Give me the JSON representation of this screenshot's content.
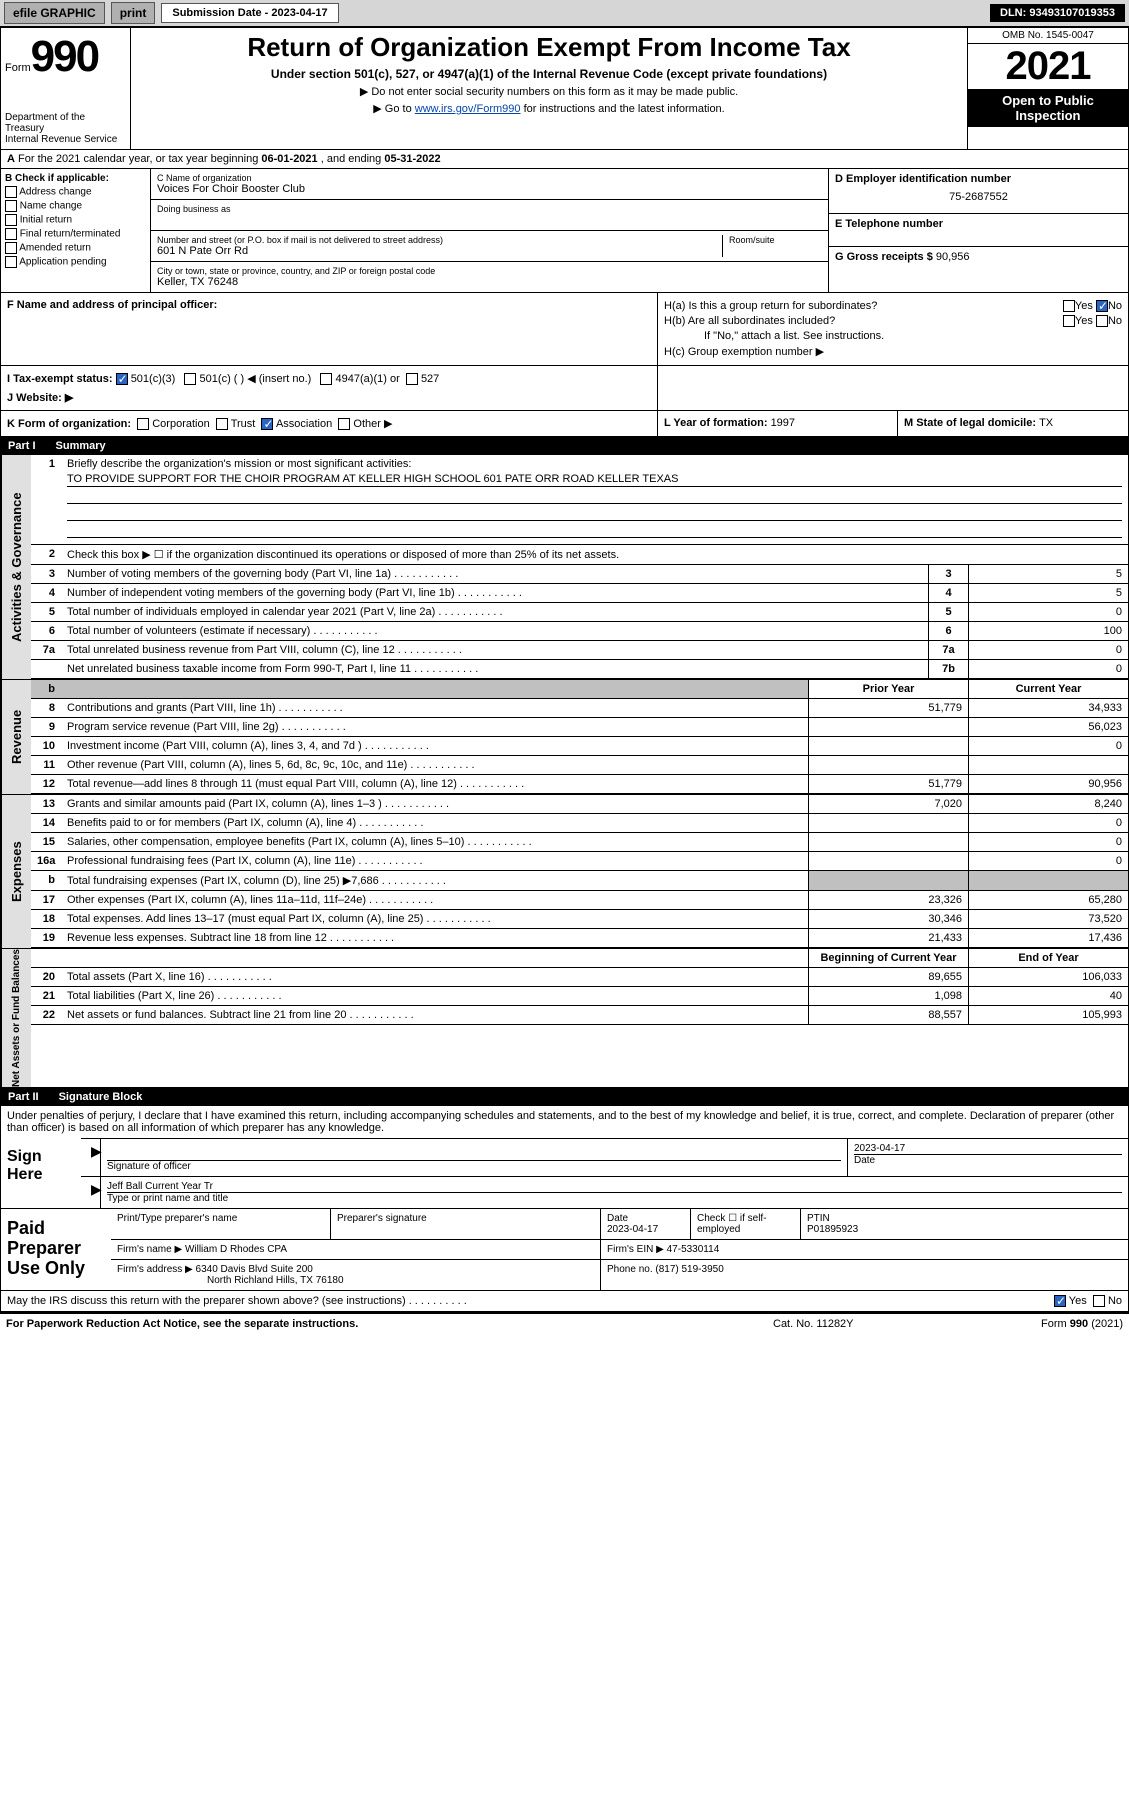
{
  "toolbar": {
    "efile": "efile GRAPHIC",
    "print": "print",
    "submission_label": "Submission Date - 2023-04-17",
    "dln": "DLN: 93493107019353"
  },
  "header": {
    "form_word": "Form",
    "form_num": "990",
    "dept": "Department of the Treasury",
    "irs": "Internal Revenue Service",
    "title": "Return of Organization Exempt From Income Tax",
    "sub1": "Under section 501(c), 527, or 4947(a)(1) of the Internal Revenue Code (except private foundations)",
    "sub2": "▶ Do not enter social security numbers on this form as it may be made public.",
    "sub3_pre": "▶ Go to ",
    "sub3_link": "www.irs.gov/Form990",
    "sub3_post": " for instructions and the latest information.",
    "omb": "OMB No. 1545-0047",
    "year": "2021",
    "inspect1": "Open to Public",
    "inspect2": "Inspection"
  },
  "row_a": {
    "label": "A",
    "text_pre": "For the 2021 calendar year, or tax year beginning ",
    "begin": "06-01-2021",
    "mid": " , and ending ",
    "end": "05-31-2022"
  },
  "col_b": {
    "header": "B Check if applicable:",
    "opts": [
      "Address change",
      "Name change",
      "Initial return",
      "Final return/terminated",
      "Amended return",
      "Application pending"
    ]
  },
  "col_c": {
    "name_lbl": "C Name of organization",
    "name": "Voices For Choir Booster Club",
    "dba_lbl": "Doing business as",
    "addr_lbl": "Number and street (or P.O. box if mail is not delivered to street address)",
    "suite_lbl": "Room/suite",
    "addr": "601 N Pate Orr Rd",
    "city_lbl": "City or town, state or province, country, and ZIP or foreign postal code",
    "city": "Keller, TX  76248"
  },
  "col_d": {
    "lbl": "D Employer identification number",
    "val": "75-2687552"
  },
  "col_e": {
    "lbl": "E Telephone number",
    "val": ""
  },
  "col_g": {
    "lbl": "G Gross receipts $ ",
    "val": "90,956"
  },
  "col_f": {
    "lbl": "F  Name and address of principal officer:",
    "val": ""
  },
  "col_h": {
    "ha": "H(a)  Is this a group return for subordinates?",
    "hb": "H(b)  Are all subordinates included?",
    "hb_note": "If \"No,\" attach a list. See instructions.",
    "hc": "H(c)  Group exemption number ▶",
    "yes": "Yes",
    "no": "No"
  },
  "row_i": {
    "lbl": "I  Tax-exempt status:",
    "o1": "501(c)(3)",
    "o2": "501(c) (  ) ◀ (insert no.)",
    "o3": "4947(a)(1) or",
    "o4": "527"
  },
  "row_j": {
    "lbl": "J  Website: ▶"
  },
  "row_k": {
    "lbl": "K Form of organization:",
    "o1": "Corporation",
    "o2": "Trust",
    "o3": "Association",
    "o4": "Other ▶"
  },
  "row_l": {
    "lbl": "L Year of formation: ",
    "val": "1997"
  },
  "row_m": {
    "lbl": "M State of legal domicile: ",
    "val": "TX"
  },
  "part1": {
    "hdr": "Part I",
    "title": "Summary",
    "q1": "Briefly describe the organization's mission or most significant activities:",
    "mission": "TO PROVIDE SUPPORT FOR THE CHOIR PROGRAM AT KELLER HIGH SCHOOL 601 PATE ORR ROAD KELLER TEXAS",
    "q2": "Check this box ▶ ☐  if the organization discontinued its operations or disposed of more than 25% of its net assets.",
    "lines_gov": [
      {
        "n": "3",
        "d": "Number of voting members of the governing body (Part VI, line 1a)",
        "mn": "3",
        "v": "5"
      },
      {
        "n": "4",
        "d": "Number of independent voting members of the governing body (Part VI, line 1b)",
        "mn": "4",
        "v": "5"
      },
      {
        "n": "5",
        "d": "Total number of individuals employed in calendar year 2021 (Part V, line 2a)",
        "mn": "5",
        "v": "0"
      },
      {
        "n": "6",
        "d": "Total number of volunteers (estimate if necessary)",
        "mn": "6",
        "v": "100"
      },
      {
        "n": "7a",
        "d": "Total unrelated business revenue from Part VIII, column (C), line 12",
        "mn": "7a",
        "v": "0"
      },
      {
        "n": "",
        "d": "Net unrelated business taxable income from Form 990-T, Part I, line 11",
        "mn": "7b",
        "v": "0"
      }
    ],
    "hdr_prior": "Prior Year",
    "hdr_curr": "Current Year",
    "rev": [
      {
        "n": "8",
        "d": "Contributions and grants (Part VIII, line 1h)",
        "p": "51,779",
        "c": "34,933"
      },
      {
        "n": "9",
        "d": "Program service revenue (Part VIII, line 2g)",
        "p": "",
        "c": "56,023"
      },
      {
        "n": "10",
        "d": "Investment income (Part VIII, column (A), lines 3, 4, and 7d )",
        "p": "",
        "c": "0"
      },
      {
        "n": "11",
        "d": "Other revenue (Part VIII, column (A), lines 5, 6d, 8c, 9c, 10c, and 11e)",
        "p": "",
        "c": ""
      },
      {
        "n": "12",
        "d": "Total revenue—add lines 8 through 11 (must equal Part VIII, column (A), line 12)",
        "p": "51,779",
        "c": "90,956"
      }
    ],
    "exp": [
      {
        "n": "13",
        "d": "Grants and similar amounts paid (Part IX, column (A), lines 1–3 )",
        "p": "7,020",
        "c": "8,240"
      },
      {
        "n": "14",
        "d": "Benefits paid to or for members (Part IX, column (A), line 4)",
        "p": "",
        "c": "0"
      },
      {
        "n": "15",
        "d": "Salaries, other compensation, employee benefits (Part IX, column (A), lines 5–10)",
        "p": "",
        "c": "0"
      },
      {
        "n": "16a",
        "d": "Professional fundraising fees (Part IX, column (A), line 11e)",
        "p": "",
        "c": "0"
      },
      {
        "n": "b",
        "d": "Total fundraising expenses (Part IX, column (D), line 25) ▶7,686",
        "p": "shade",
        "c": "shade"
      },
      {
        "n": "17",
        "d": "Other expenses (Part IX, column (A), lines 11a–11d, 11f–24e)",
        "p": "23,326",
        "c": "65,280"
      },
      {
        "n": "18",
        "d": "Total expenses. Add lines 13–17 (must equal Part IX, column (A), line 25)",
        "p": "30,346",
        "c": "73,520"
      },
      {
        "n": "19",
        "d": "Revenue less expenses. Subtract line 18 from line 12",
        "p": "21,433",
        "c": "17,436"
      }
    ],
    "hdr_beg": "Beginning of Current Year",
    "hdr_end": "End of Year",
    "net": [
      {
        "n": "20",
        "d": "Total assets (Part X, line 16)",
        "p": "89,655",
        "c": "106,033"
      },
      {
        "n": "21",
        "d": "Total liabilities (Part X, line 26)",
        "p": "1,098",
        "c": "40"
      },
      {
        "n": "22",
        "d": "Net assets or fund balances. Subtract line 21 from line 20",
        "p": "88,557",
        "c": "105,993"
      }
    ],
    "vtab_gov": "Activities & Governance",
    "vtab_rev": "Revenue",
    "vtab_exp": "Expenses",
    "vtab_net": "Net Assets or Fund Balances"
  },
  "part2": {
    "hdr": "Part II",
    "title": "Signature Block",
    "decl": "Under penalties of perjury, I declare that I have examined this return, including accompanying schedules and statements, and to the best of my knowledge and belief, it is true, correct, and complete. Declaration of preparer (other than officer) is based on all information of which preparer has any knowledge.",
    "sign_here": "Sign Here",
    "sig_officer": "Signature of officer",
    "sig_date": "Date",
    "sig_date_val": "2023-04-17",
    "name_title": "Jeff Ball  Current Year Tr",
    "name_title_lbl": "Type or print name and title",
    "paid": "Paid Preparer Use Only",
    "pt_name_lbl": "Print/Type preparer's name",
    "pt_sig_lbl": "Preparer's signature",
    "pt_date_lbl": "Date",
    "pt_date": "2023-04-17",
    "pt_check": "Check ☐ if self-employed",
    "ptin_lbl": "PTIN",
    "ptin": "P01895923",
    "firm_name_lbl": "Firm's name    ▶",
    "firm_name": "William D Rhodes CPA",
    "firm_ein_lbl": "Firm's EIN ▶",
    "firm_ein": "47-5330114",
    "firm_addr_lbl": "Firm's address ▶",
    "firm_addr1": "6340 Davis Blvd Suite 200",
    "firm_addr2": "North Richland Hills, TX  76180",
    "phone_lbl": "Phone no. ",
    "phone": "(817) 519-3950",
    "discuss": "May the IRS discuss this return with the preparer shown above? (see instructions)",
    "yes": "Yes",
    "no": "No"
  },
  "footer": {
    "left": "For Paperwork Reduction Act Notice, see the separate instructions.",
    "mid": "Cat. No. 11282Y",
    "right": "Form 990 (2021)"
  }
}
